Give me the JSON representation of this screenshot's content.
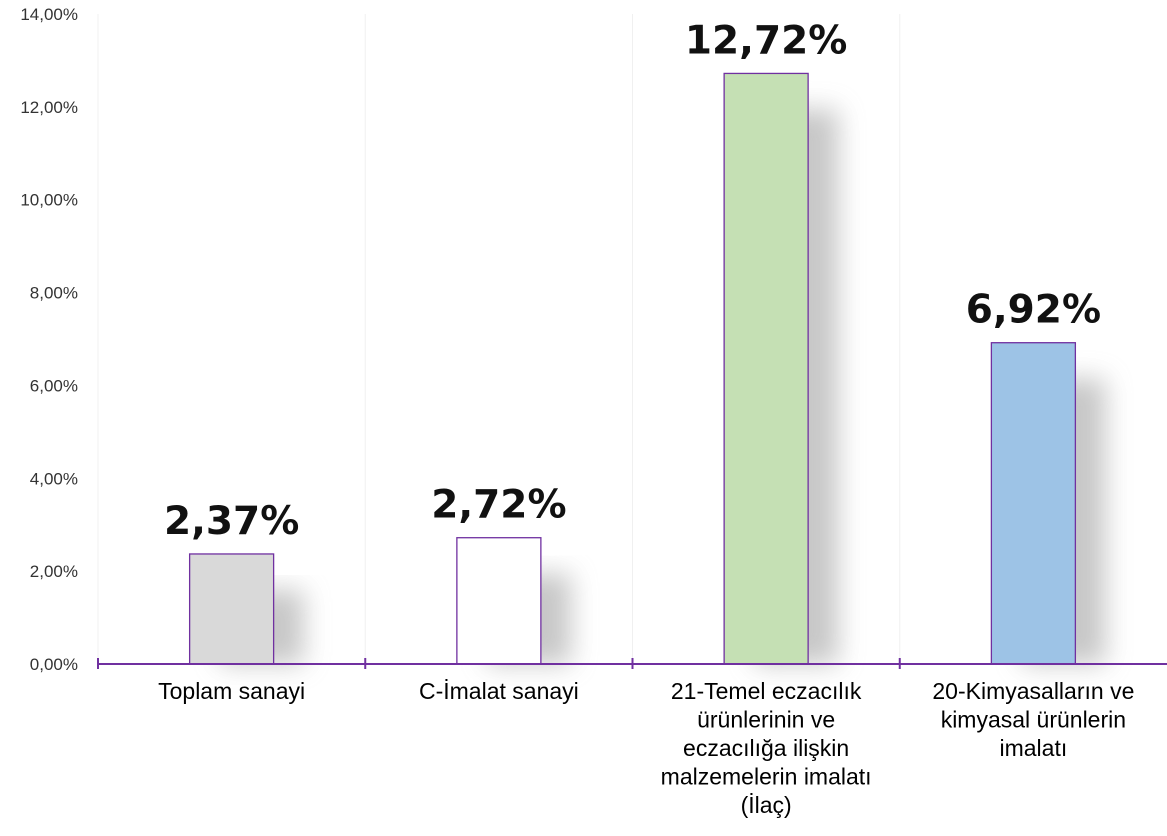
{
  "chart_data": {
    "type": "bar",
    "title": "",
    "xlabel": "",
    "ylabel": "",
    "ylim": [
      0,
      14
    ],
    "ytick_step": 2,
    "y_tick_labels": [
      "0,00%",
      "2,00%",
      "4,00%",
      "6,00%",
      "8,00%",
      "10,00%",
      "12,00%",
      "14,00%"
    ],
    "categories": [
      [
        "Toplam sanayi"
      ],
      [
        "C-İmalat sanayi"
      ],
      [
        "21-Temel eczacılık",
        "ürünlerinin ve",
        "eczacılığa ilişkin",
        "malzemelerin imalatı",
        "(İlaç)"
      ],
      [
        "20-Kimyasalların ve",
        "kimyasal ürünlerin",
        "imalatı"
      ]
    ],
    "values": [
      2.37,
      2.72,
      12.72,
      6.92
    ],
    "data_labels": [
      "2,37%",
      "2,72%",
      "12,72%",
      "6,92%"
    ],
    "bar_colors": [
      "#d9d9d9",
      "#ffffff",
      "#c5e0b4",
      "#9dc3e6"
    ],
    "bar_outline_color": "#7030a0",
    "axis_color": "#7030a0",
    "grid": "vertical category separators",
    "legend": "none"
  }
}
